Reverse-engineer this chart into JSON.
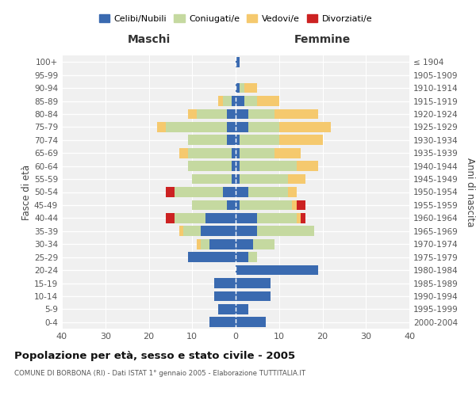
{
  "age_groups": [
    "100+",
    "95-99",
    "90-94",
    "85-89",
    "80-84",
    "75-79",
    "70-74",
    "65-69",
    "60-64",
    "55-59",
    "50-54",
    "45-49",
    "40-44",
    "35-39",
    "30-34",
    "25-29",
    "20-24",
    "15-19",
    "10-14",
    "5-9",
    "0-4"
  ],
  "birth_years": [
    "≤ 1904",
    "1905-1909",
    "1910-1914",
    "1915-1919",
    "1920-1924",
    "1925-1929",
    "1930-1934",
    "1935-1939",
    "1940-1944",
    "1945-1949",
    "1950-1954",
    "1955-1959",
    "1960-1964",
    "1965-1969",
    "1970-1974",
    "1975-1979",
    "1980-1984",
    "1985-1989",
    "1990-1994",
    "1995-1999",
    "2000-2004"
  ],
  "male_celibi": [
    0,
    0,
    0,
    1,
    2,
    2,
    2,
    1,
    1,
    1,
    3,
    2,
    7,
    8,
    6,
    11,
    0,
    5,
    5,
    4,
    6
  ],
  "male_coniugati": [
    0,
    0,
    0,
    2,
    7,
    14,
    9,
    10,
    10,
    9,
    11,
    8,
    7,
    4,
    2,
    0,
    0,
    0,
    0,
    0,
    0
  ],
  "male_vedovi": [
    0,
    0,
    0,
    1,
    2,
    2,
    0,
    2,
    0,
    0,
    0,
    0,
    0,
    1,
    1,
    0,
    0,
    0,
    0,
    0,
    0
  ],
  "male_divorziati": [
    0,
    0,
    0,
    0,
    0,
    0,
    0,
    0,
    0,
    0,
    2,
    0,
    2,
    0,
    0,
    0,
    0,
    0,
    0,
    0,
    0
  ],
  "female_celibi": [
    1,
    0,
    1,
    2,
    3,
    3,
    1,
    1,
    1,
    1,
    3,
    1,
    5,
    5,
    4,
    3,
    19,
    8,
    8,
    3,
    7
  ],
  "female_coniugati": [
    0,
    0,
    1,
    3,
    6,
    7,
    9,
    8,
    13,
    11,
    9,
    12,
    9,
    13,
    5,
    2,
    0,
    0,
    0,
    0,
    0
  ],
  "female_vedovi": [
    0,
    0,
    3,
    5,
    10,
    12,
    10,
    6,
    5,
    4,
    2,
    1,
    1,
    0,
    0,
    0,
    0,
    0,
    0,
    0,
    0
  ],
  "female_divorziati": [
    0,
    0,
    0,
    0,
    0,
    0,
    0,
    0,
    0,
    0,
    0,
    2,
    1,
    0,
    0,
    0,
    0,
    0,
    0,
    0,
    0
  ],
  "colors": {
    "celibi": "#3a6ab0",
    "coniugati": "#c5d9a0",
    "vedovi": "#f5c96e",
    "divorziati": "#cc2222"
  },
  "title": "Popolazione per età, sesso e stato civile - 2005",
  "subtitle": "COMUNE DI BORBONA (RI) - Dati ISTAT 1° gennaio 2005 - Elaborazione TUTTITALIA.IT",
  "ylabel_left": "Fasce di età",
  "ylabel_right": "Anni di nascita",
  "xlabel_left": "Maschi",
  "xlabel_right": "Femmine",
  "xlim": 40,
  "legend_labels": [
    "Celibi/Nubili",
    "Coniugati/e",
    "Vedovi/e",
    "Divorziati/e"
  ],
  "bg_color": "#f0f0f0"
}
